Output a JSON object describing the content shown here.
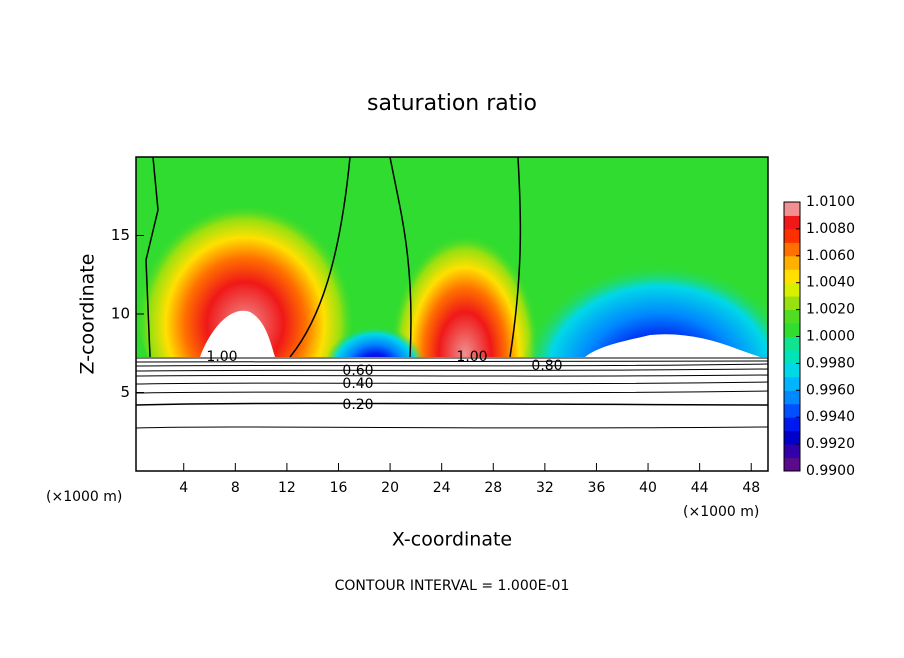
{
  "chart_data": {
    "type": "contour",
    "title": "saturation ratio",
    "x_label": "X-coordinate",
    "y_label": "Z-coordinate",
    "x_unit_left": "(×1000 m)",
    "x_unit_right": "(×1000 m)",
    "footer": "CONTOUR INTERVAL = 1.000E-01",
    "xlim": [
      0.3,
      49.3
    ],
    "ylim": [
      0,
      20
    ],
    "xticks": [
      4,
      8,
      12,
      16,
      20,
      24,
      28,
      32,
      36,
      40,
      44,
      48
    ],
    "yticks": [
      5,
      10,
      15
    ],
    "contour_labels": [
      {
        "value": 1,
        "label": "1.00"
      },
      {
        "value": 0.8,
        "label": "0.80"
      },
      {
        "value": 0.6,
        "label": "0.60"
      },
      {
        "value": 0.4,
        "label": "0.40"
      },
      {
        "value": 0.2,
        "label": "0.20"
      },
      {
        "value": 1,
        "label": "1.00"
      }
    ],
    "colorbar": {
      "lim": [
        0.99,
        1.01
      ],
      "ticks": [
        {
          "value": 1.01,
          "label": "1.0100"
        },
        {
          "value": 1.008,
          "label": "1.0080"
        },
        {
          "value": 1.006,
          "label": "1.0060"
        },
        {
          "value": 1.004,
          "label": "1.0040"
        },
        {
          "value": 1.002,
          "label": "1.0020"
        },
        {
          "value": 1.0,
          "label": "1.0000"
        },
        {
          "value": 0.998,
          "label": "0.9980"
        },
        {
          "value": 0.996,
          "label": "0.9960"
        },
        {
          "value": 0.994,
          "label": "0.9940"
        },
        {
          "value": 0.992,
          "label": "0.9920"
        },
        {
          "value": 0.99,
          "label": "0.9900"
        }
      ],
      "colors": [
        "#5a0a8c",
        "#3200a8",
        "#0000c8",
        "#0018f0",
        "#0050ff",
        "#0088ff",
        "#00b4ff",
        "#00d8e8",
        "#00e4b8",
        "#10e490",
        "#30dc30",
        "#50dc20",
        "#98e010",
        "#d8f000",
        "#ffe000",
        "#ffb000",
        "#ff7000",
        "#ff3000",
        "#f01818",
        "#f09090"
      ]
    }
  }
}
